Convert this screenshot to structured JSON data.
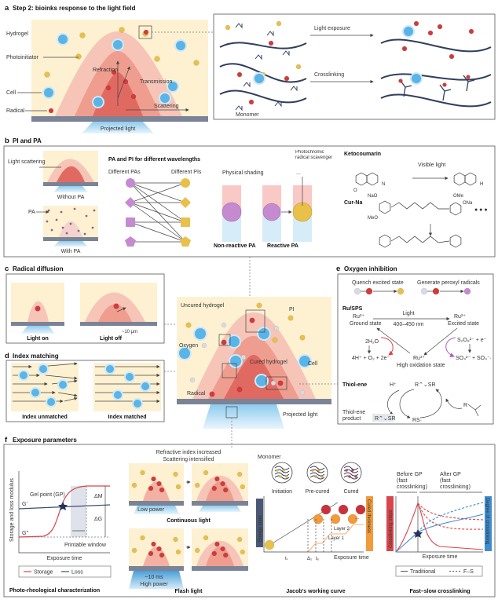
{
  "colors": {
    "hydrogel": "#fdf1d2",
    "cured_light": "#f6c5b8",
    "cured_mid": "#ee9d8f",
    "cured_dark": "#e06a62",
    "substrate": "#7b8397",
    "projected_light": "#a9d6f0",
    "cell": "#5ab4e5",
    "photoinitiator": "#e8c04a",
    "radical": "#d23b3b",
    "oxygen": "#d8dbe3",
    "photoabsorber": "#c58ad0",
    "orange": "#f39a3c",
    "storage": "#d9454c",
    "loss": "#3c4f6b",
    "traditional": "#3d8ed0"
  },
  "panel_a": {
    "letter": "a",
    "title": "Step 2: bioinks response to the light field",
    "labels": {
      "hydrogel": "Hydrogel",
      "photoinitiator": "Photoinitiator",
      "refraction": "Refraction",
      "transmission": "Transmission",
      "cell": "Cell",
      "radical": "Radical",
      "scattering": "Scattering",
      "projected_light": "Projected light",
      "light_exposure": "Light exposure",
      "crosslinking": "Crosslinking",
      "monomer": "Monomer"
    }
  },
  "panel_b": {
    "letter": "b",
    "title": "PI and PA",
    "light_scattering": "Light scattering",
    "without_pa": "Without PA",
    "pa": "PA",
    "with_pa": "With PA",
    "wavelength_heading": "PA and PI  for different wavelengths",
    "different_pas": "Different PAs",
    "different_pis": "Different PIs",
    "physical_shading": "Physical shading",
    "non_reactive_pa": "Non-reactive PA",
    "photochromic": "Photochromic radical scavenger",
    "ellipsis": "...",
    "reactive_pa": "Reactive PA",
    "ketocoumarin": "Ketocoumarin",
    "visible_light": "Visible light",
    "cur_na": "Cur-Na",
    "chem_labels": {
      "ome": "OMe",
      "ona": "ONa",
      "nao": "NaO",
      "meo": "MeO",
      "o": "O",
      "n": "N",
      "h": "H"
    }
  },
  "panel_c": {
    "letter": "c",
    "title": "Radical diffusion",
    "light_on": "Light on",
    "light_off": "Light off",
    "scale": "~10 μm"
  },
  "panel_d": {
    "letter": "d",
    "title": "Index matching",
    "unmatched": "Index unmatched",
    "matched": "Index matched"
  },
  "center": {
    "uncured_hydrogel": "Uncured hydrogel",
    "pi": "PI",
    "oxygen": "Oxygen",
    "cured_hydrogel": "Cured hydrogel",
    "cell": "Cell",
    "radical": "Radical",
    "projected_light": "Projected light"
  },
  "panel_e": {
    "letter": "e",
    "title": "Oxygen inhibition",
    "quench": "Quench excited state",
    "peroxyl": "Generate peroxyl radicals",
    "ru_sps": "Ru/SPS",
    "light": "Light",
    "wavelength": "400–450 nm",
    "ru2_left": "Ru²⁺",
    "ground_state": "Ground state",
    "ru2_right": "Ru²⁺",
    "excited_state": "Excited state",
    "water": "2H₂O",
    "water_products": "4H⁺ + O₂ + 2e⁻",
    "persulfate": "S₂O₈²⁻ + e⁻",
    "sulfate_products": "SO₄²⁻ + SO₄⁻·",
    "ru3": "Ru³⁺",
    "high_oxidation": "High oxidation state",
    "thiol_ene": "Thiol-ene",
    "h_plus": "H⁺",
    "r_sr": "R⌃⌄SR",
    "r": "R",
    "rs": "RS·",
    "product_line1": "Thiol-ene",
    "product_line2": "product",
    "product_formula": "R⌃⌄SR"
  },
  "panel_f": {
    "letter": "f",
    "title": "Exposure parameters",
    "rheology": {
      "ylabel": "Storage and loss modulus",
      "xlabel": "Exposure time",
      "gel_point": "Gel point (GP)",
      "g_prime": "G′",
      "g_double_prime": "G′′",
      "delta_m": "ΔM",
      "delta_g": "ΔG",
      "printable_window": "Printable window",
      "legend": [
        "Storage",
        "Loss"
      ],
      "caption": "Photo-rheological characterization"
    },
    "flash": {
      "note_line1": "Refractive index increased",
      "note_line2": "Scattering intensified",
      "low_power": "Low power",
      "continuous_light": "Continuous light",
      "duration": "~10 ms",
      "high_power": "High power",
      "caption": "Flash light"
    },
    "jacob": {
      "monomer": "Monomer",
      "stages": [
        "Initiation",
        "Pre-cured",
        "Cured"
      ],
      "energy_state": "Energy state",
      "cured_thickness": "Cured thickness",
      "layer1": "Layer 1",
      "layer2": "Layer 2",
      "ellipsis": "...",
      "t_t": "tₜ",
      "delta_1": "Δ₁",
      "t_e": "tₑ",
      "xlabel": "Exposure time",
      "caption": "Jacob's working curve"
    },
    "fast_slow": {
      "before_gp": [
        "Before GP",
        "(fast",
        "crosslinking)"
      ],
      "after_gp": [
        "After GP",
        "(fast",
        "crosslinking)"
      ],
      "crosslinking_steps": "Crosslinking steps",
      "degree": "Degree of crosslinking",
      "xlabel": "Exposure time",
      "legend": [
        "Traditional",
        "F–S"
      ],
      "caption": "Fast–slow crosslinking"
    }
  }
}
